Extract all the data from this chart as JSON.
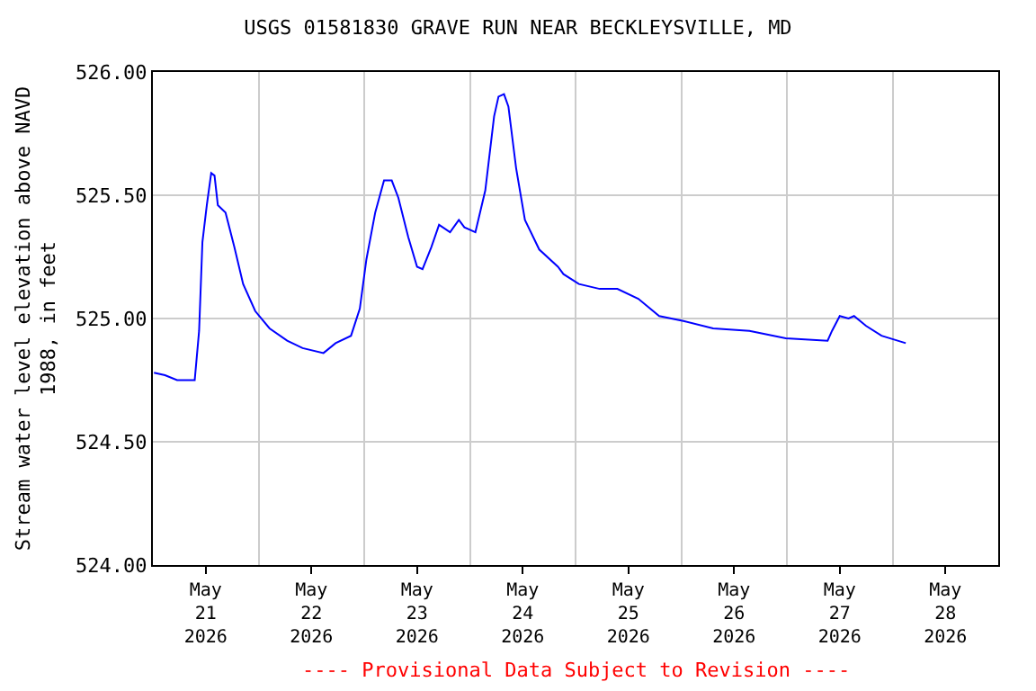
{
  "chart_data": {
    "type": "line",
    "title": "USGS 01581830 GRAVE RUN NEAR BECKLEYSVILLE, MD",
    "ylabel": "Stream water level elevation above NAVD\n1988, in feet",
    "annotations": [
      "---- Provisional Data Subject to Revision ----"
    ],
    "x": [
      "2026-05-21T00:15",
      "2026-05-21T02:45",
      "2026-05-21T05:30",
      "2026-05-21T09:30",
      "2026-05-21T10:30",
      "2026-05-21T11:15",
      "2026-05-21T12:15",
      "2026-05-21T13:15",
      "2026-05-21T14:00",
      "2026-05-21T14:45",
      "2026-05-21T16:30",
      "2026-05-21T18:30",
      "2026-05-21T20:30",
      "2026-05-21T23:15",
      "2026-05-22T02:30",
      "2026-05-22T06:30",
      "2026-05-22T10:00",
      "2026-05-22T14:45",
      "2026-05-22T17:30",
      "2026-05-22T21:00",
      "2026-05-22T23:00",
      "2026-05-23T00:30",
      "2026-05-23T02:30",
      "2026-05-23T04:30",
      "2026-05-23T06:15",
      "2026-05-23T07:45",
      "2026-05-23T10:00",
      "2026-05-23T12:00",
      "2026-05-23T13:15",
      "2026-05-23T15:15",
      "2026-05-23T17:00",
      "2026-05-23T19:30",
      "2026-05-23T21:30",
      "2026-05-23T22:45",
      "2026-05-24T01:15",
      "2026-05-24T03:30",
      "2026-05-24T05:30",
      "2026-05-24T06:30",
      "2026-05-24T07:45",
      "2026-05-24T08:45",
      "2026-05-24T10:30",
      "2026-05-24T12:30",
      "2026-05-24T15:45",
      "2026-05-24T20:00",
      "2026-05-24T21:15",
      "2026-05-25T00:45",
      "2026-05-25T05:30",
      "2026-05-25T09:30",
      "2026-05-25T14:15",
      "2026-05-25T19:00",
      "2026-05-26T00:30",
      "2026-05-26T07:15",
      "2026-05-26T15:30",
      "2026-05-26T23:45",
      "2026-05-27T09:15",
      "2026-05-27T10:15",
      "2026-05-27T12:00",
      "2026-05-27T14:00",
      "2026-05-27T15:15",
      "2026-05-27T18:00",
      "2026-05-27T21:30",
      "2026-05-28T03:00"
    ],
    "series": [
      {
        "color": "#0000ff",
        "values": [
          524.78,
          524.77,
          524.75,
          524.75,
          524.95,
          525.31,
          525.46,
          525.59,
          525.58,
          525.46,
          525.43,
          525.29,
          525.14,
          525.03,
          524.96,
          524.91,
          524.88,
          524.86,
          524.9,
          524.93,
          525.04,
          525.24,
          525.43,
          525.56,
          525.56,
          525.49,
          525.33,
          525.21,
          525.2,
          525.29,
          525.38,
          525.35,
          525.4,
          525.37,
          525.35,
          525.52,
          525.82,
          525.9,
          525.91,
          525.86,
          525.61,
          525.4,
          525.28,
          525.21,
          525.18,
          525.14,
          525.12,
          525.12,
          525.08,
          525.01,
          524.99,
          524.96,
          524.95,
          524.92,
          524.91,
          524.95,
          525.01,
          525,
          525.01,
          524.97,
          524.93,
          524.9
        ]
      }
    ],
    "xlim": [
      "2026-05-21T00:00",
      "2026-05-29T00:00"
    ],
    "xticks": [
      {
        "value": "2026-05-21T12:00",
        "label": "May\n21\n2026"
      },
      {
        "value": "2026-05-22T12:00",
        "label": "May\n22\n2026"
      },
      {
        "value": "2026-05-23T12:00",
        "label": "May\n23\n2026"
      },
      {
        "value": "2026-05-24T12:00",
        "label": "May\n24\n2026"
      },
      {
        "value": "2026-05-25T12:00",
        "label": "May\n25\n2026"
      },
      {
        "value": "2026-05-26T12:00",
        "label": "May\n26\n2026"
      },
      {
        "value": "2026-05-27T12:00",
        "label": "May\n27\n2026"
      },
      {
        "value": "2026-05-28T12:00",
        "label": "May\n28\n2026"
      },
      {
        "value": "2026-05-22T00:00",
        "label": null
      },
      {
        "value": "2026-05-23T00:00",
        "label": null
      },
      {
        "value": "2026-05-24T00:00",
        "label": null
      },
      {
        "value": "2026-05-25T00:00",
        "label": null
      },
      {
        "value": "2026-05-26T00:00",
        "label": null
      },
      {
        "value": "2026-05-27T00:00",
        "label": null
      },
      {
        "value": "2026-05-28T00:00",
        "label": null
      }
    ],
    "ylim": [
      524,
      526
    ],
    "yticks": [
      {
        "value": 524,
        "label": "524.00"
      },
      {
        "value": 524.5,
        "label": "524.50"
      },
      {
        "value": 525,
        "label": "525.00"
      },
      {
        "value": 525.5,
        "label": "525.50"
      },
      {
        "value": 526,
        "label": "526.00"
      }
    ],
    "grid": true,
    "marker": "none",
    "line_style": "solid"
  }
}
